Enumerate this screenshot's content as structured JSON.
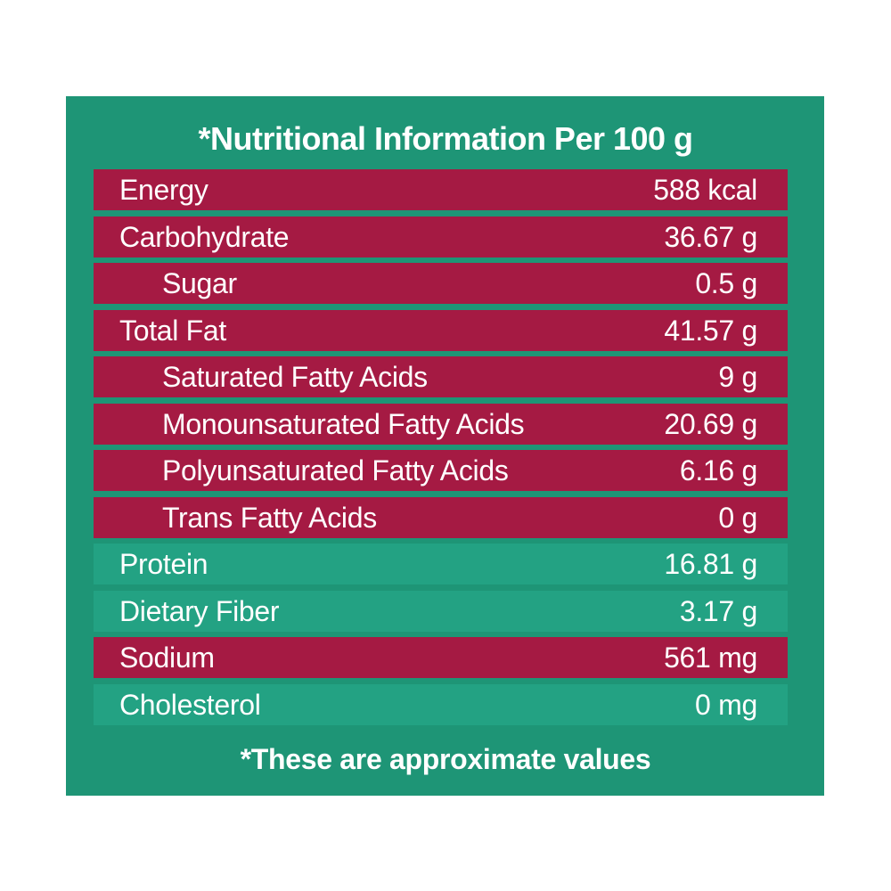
{
  "title": "*Nutritional Information Per 100 g",
  "rows": [
    {
      "label": "Energy",
      "value": "588 kcal"
    },
    {
      "label": "Carbohydrate",
      "value": "36.67 g"
    },
    {
      "label": "Sugar",
      "value": "0.5 g"
    },
    {
      "label": "Total Fat",
      "value": "41.57 g"
    },
    {
      "label": "Saturated Fatty Acids",
      "value": "9 g"
    },
    {
      "label": "Monounsaturated Fatty Acids",
      "value": "20.69 g"
    },
    {
      "label": "Polyunsaturated Fatty Acids",
      "value": "6.16 g"
    },
    {
      "label": "Trans Fatty Acids",
      "value": "0 g"
    },
    {
      "label": "Protein",
      "value": "16.81 g"
    },
    {
      "label": "Dietary Fiber",
      "value": "3.17 g"
    },
    {
      "label": "Sodium",
      "value": "561 mg"
    },
    {
      "label": "Cholesterol",
      "value": "0 mg"
    }
  ],
  "footnote": "*These are approximate values",
  "colors": {
    "panel": "#1e9576",
    "red_row": "#a51a43",
    "green_row": "#23a283",
    "text": "#ffffff"
  }
}
